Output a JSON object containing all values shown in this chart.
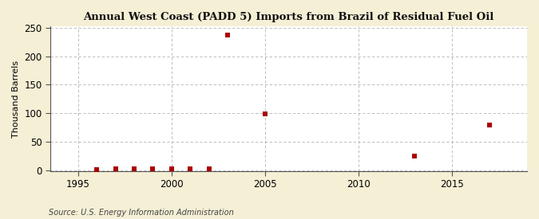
{
  "title": "Annual West Coast (PADD 5) Imports from Brazil of Residual Fuel Oil",
  "ylabel": "Thousand Barrels",
  "source": "Source: U.S. Energy Information Administration",
  "background_color": "#f5efd5",
  "plot_bg_color": "#ffffff",
  "marker_color": "#aa0000",
  "grid_color": "#aaaaaa",
  "xlim": [
    1993.5,
    2019
  ],
  "ylim": [
    -2,
    252
  ],
  "yticks": [
    0,
    50,
    100,
    150,
    200,
    250
  ],
  "xticks": [
    1995,
    2000,
    2005,
    2010,
    2015
  ],
  "data_points": [
    [
      1996,
      1
    ],
    [
      1997,
      2
    ],
    [
      1998,
      2
    ],
    [
      1999,
      2
    ],
    [
      2000,
      3
    ],
    [
      2001,
      2
    ],
    [
      2002,
      2
    ],
    [
      2003,
      237
    ],
    [
      2005,
      99
    ],
    [
      2013,
      25
    ],
    [
      2017,
      79
    ]
  ]
}
